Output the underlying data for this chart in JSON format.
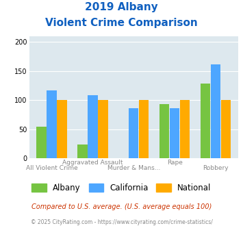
{
  "title_line1": "2019 Albany",
  "title_line2": "Violent Crime Comparison",
  "categories_top": [
    "",
    "Aggravated Assault",
    "",
    "Rape",
    ""
  ],
  "categories_bottom": [
    "All Violent Crime",
    "",
    "Murder & Mans...",
    "",
    "Robbery"
  ],
  "albany": [
    54,
    23,
    0,
    93,
    128
  ],
  "california": [
    117,
    108,
    86,
    86,
    162
  ],
  "national": [
    100,
    100,
    100,
    100,
    100
  ],
  "colors": {
    "albany": "#76c442",
    "california": "#4da6ff",
    "national": "#ffaa00"
  },
  "ylim": [
    0,
    210
  ],
  "yticks": [
    0,
    50,
    100,
    150,
    200
  ],
  "bg_color": "#dde8ee",
  "title_color": "#1060c0",
  "legend_labels": [
    "Albany",
    "California",
    "National"
  ],
  "footnote1": "Compared to U.S. average. (U.S. average equals 100)",
  "footnote2": "© 2025 CityRating.com - https://www.cityrating.com/crime-statistics/",
  "footnote1_color": "#cc3300",
  "footnote2_color": "#888888"
}
